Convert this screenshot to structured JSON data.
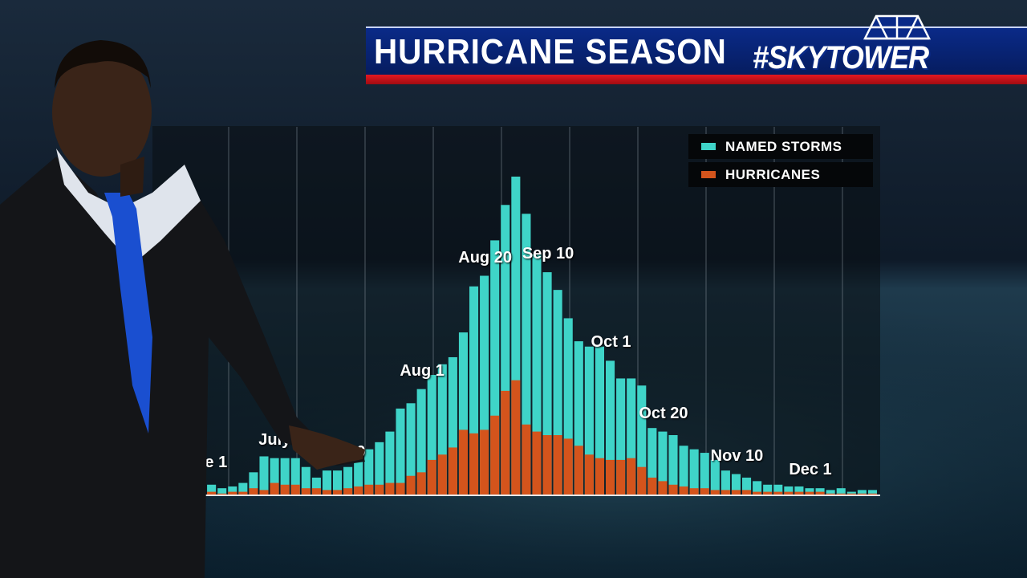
{
  "header": {
    "title": "HURRICANE SEASON",
    "brand": "#SKYTOWER"
  },
  "colors": {
    "named_storms": "#3fd4c8",
    "hurricanes": "#d4541c",
    "banner_blue": "#0a2a88",
    "banner_red": "#e41820"
  },
  "chart_data": {
    "type": "bar",
    "stacked": "overlaid",
    "grid": true,
    "legend_position": "top-right",
    "legend": [
      "NAMED STORMS",
      "HURRICANES"
    ],
    "annotations": [
      {
        "label": "June 1",
        "index": 0
      },
      {
        "label": "July 20",
        "index": 8
      },
      {
        "label": "July 10",
        "index": 13
      },
      {
        "label": "Aug 1",
        "index": 21
      },
      {
        "label": "Aug 20",
        "index": 27
      },
      {
        "label": "Sep 10",
        "index": 33
      },
      {
        "label": "Oct 1",
        "index": 39
      },
      {
        "label": "Oct 20",
        "index": 44
      },
      {
        "label": "Nov 10",
        "index": 51
      },
      {
        "label": "Dec 1",
        "index": 58
      }
    ],
    "series": [
      {
        "name": "NAMED STORMS",
        "values": [
          8,
          6,
          4,
          5,
          7,
          13,
          22,
          21,
          21,
          21,
          16,
          10,
          14,
          14,
          16,
          20,
          26,
          30,
          36,
          49,
          52,
          60,
          68,
          74,
          78,
          92,
          118,
          124,
          144,
          164,
          180,
          159,
          136,
          126,
          116,
          100,
          87,
          84,
          84,
          76,
          66,
          66,
          62,
          38,
          36,
          34,
          28,
          26,
          24,
          20,
          14,
          12,
          10,
          8,
          6,
          6,
          5,
          5,
          4,
          4,
          3,
          4,
          2,
          3,
          3
        ]
      },
      {
        "name": "HURRICANES",
        "values": [
          3,
          2,
          1,
          2,
          2,
          4,
          3,
          7,
          6,
          6,
          4,
          4,
          3,
          3,
          4,
          5,
          6,
          6,
          7,
          7,
          11,
          13,
          20,
          23,
          27,
          37,
          35,
          37,
          45,
          59,
          65,
          40,
          36,
          34,
          34,
          32,
          28,
          23,
          21,
          20,
          20,
          21,
          16,
          10,
          8,
          6,
          5,
          4,
          4,
          3,
          3,
          3,
          3,
          2,
          2,
          2,
          2,
          2,
          2,
          2,
          1,
          1,
          1,
          1,
          1
        ]
      }
    ]
  }
}
